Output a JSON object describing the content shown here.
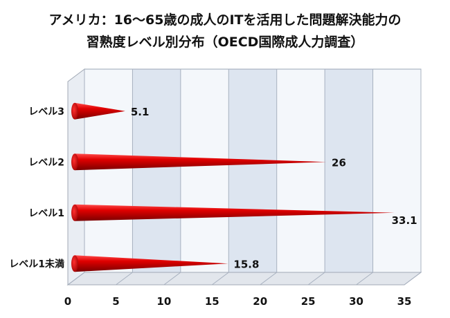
{
  "chart_data": {
    "type": "bar",
    "orientation": "horizontal",
    "title": "アメリカ：16～65歳の成人のITを活用した問題解決能力の",
    "subtitle": "習熟度レベル別分布（OECD国際成人力調査）",
    "categories": [
      "レベル3",
      "レベル2",
      "レベル1",
      "レベル1未満"
    ],
    "values": [
      5.1,
      26,
      33.1,
      15.8
    ],
    "value_labels": [
      "5.1",
      "26",
      "33.1",
      "15.8"
    ],
    "x_ticks": [
      "0",
      "5",
      "10",
      "15",
      "20",
      "25",
      "30",
      "35"
    ],
    "xlim": [
      0,
      35
    ],
    "xlabel": "",
    "ylabel": "",
    "grid": true,
    "legend": "none",
    "bar_color": "#e00000",
    "bar_dark": "#7a0000",
    "plot_band_light": "#f4f7fb",
    "plot_band_dark": "#dde5f0"
  }
}
